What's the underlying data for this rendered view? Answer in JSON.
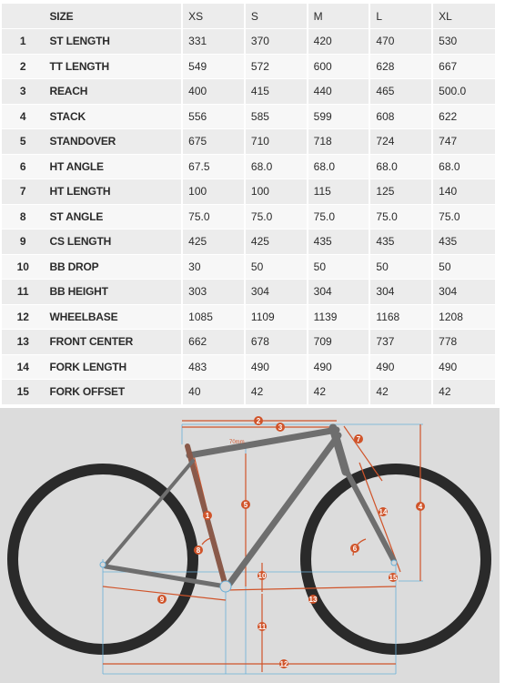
{
  "table": {
    "header": [
      "SIZE",
      "XS",
      "S",
      "M",
      "L",
      "XL"
    ],
    "rows": [
      {
        "num": "1",
        "name": "ST LENGTH",
        "values": [
          "331",
          "370",
          "420",
          "470",
          "530"
        ]
      },
      {
        "num": "2",
        "name": "TT LENGTH",
        "values": [
          "549",
          "572",
          "600",
          "628",
          "667"
        ]
      },
      {
        "num": "3",
        "name": "REACH",
        "values": [
          "400",
          "415",
          "440",
          "465",
          "500.0"
        ]
      },
      {
        "num": "4",
        "name": "STACK",
        "values": [
          "556",
          "585",
          "599",
          "608",
          "622"
        ]
      },
      {
        "num": "5",
        "name": "STANDOVER",
        "values": [
          "675",
          "710",
          "718",
          "724",
          "747"
        ]
      },
      {
        "num": "6",
        "name": "HT ANGLE",
        "values": [
          "67.5",
          "68.0",
          "68.0",
          "68.0",
          "68.0"
        ]
      },
      {
        "num": "7",
        "name": "HT LENGTH",
        "values": [
          "100",
          "100",
          "115",
          "125",
          "140"
        ]
      },
      {
        "num": "8",
        "name": "ST ANGLE",
        "values": [
          "75.0",
          "75.0",
          "75.0",
          "75.0",
          "75.0"
        ]
      },
      {
        "num": "9",
        "name": "CS LENGTH",
        "values": [
          "425",
          "425",
          "435",
          "435",
          "435"
        ]
      },
      {
        "num": "10",
        "name": "BB DROP",
        "values": [
          "30",
          "50",
          "50",
          "50",
          "50"
        ]
      },
      {
        "num": "11",
        "name": "BB HEIGHT",
        "values": [
          "303",
          "304",
          "304",
          "304",
          "304"
        ]
      },
      {
        "num": "12",
        "name": "WHEELBASE",
        "values": [
          "1085",
          "1109",
          "1139",
          "1168",
          "1208"
        ]
      },
      {
        "num": "13",
        "name": "FRONT CENTER",
        "values": [
          "662",
          "678",
          "709",
          "737",
          "778"
        ]
      },
      {
        "num": "14",
        "name": "FORK LENGTH",
        "values": [
          "483",
          "490",
          "490",
          "490",
          "490"
        ]
      },
      {
        "num": "15",
        "name": "FORK OFFSET",
        "values": [
          "40",
          "42",
          "42",
          "42",
          "42"
        ]
      }
    ]
  },
  "diagram": {
    "standover_note": "70mm",
    "markers": [
      "1",
      "2",
      "3",
      "4",
      "5",
      "6",
      "7",
      "8",
      "9",
      "10",
      "11",
      "12",
      "13",
      "14",
      "15"
    ],
    "colors": {
      "frame": "#6e6e6e",
      "seat_tube": "#8a5a4a",
      "measure": "#d0542a",
      "guide": "#6ab0d8",
      "tire": "#2a2a2a",
      "panel": "#dcdcdc"
    }
  }
}
